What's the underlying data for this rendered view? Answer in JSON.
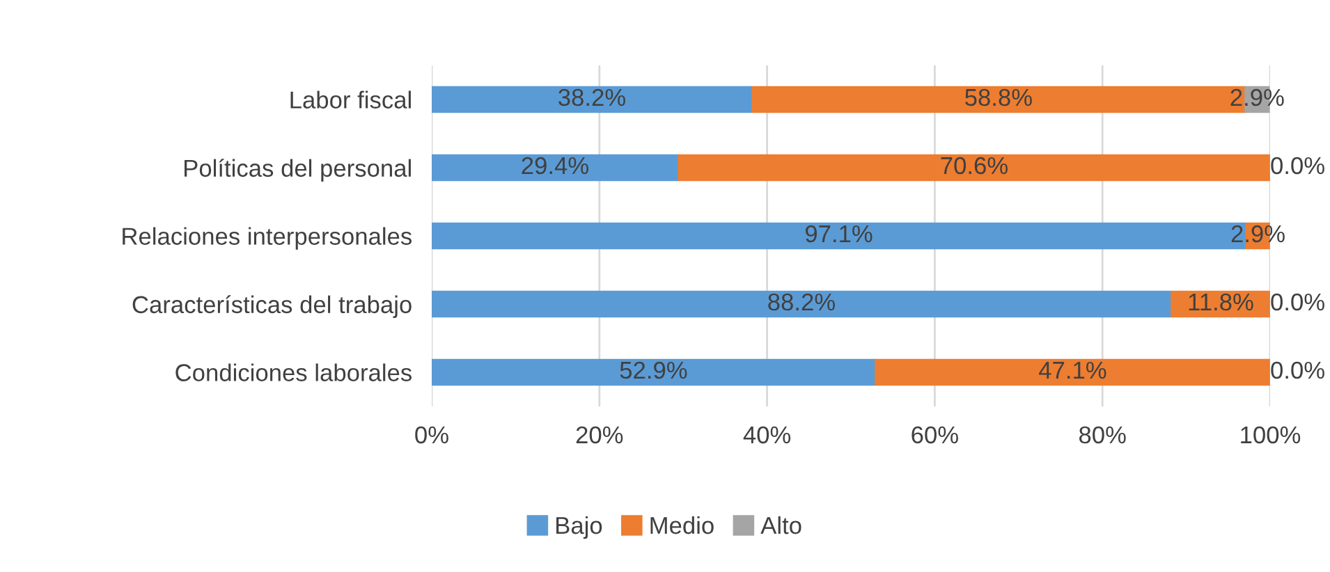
{
  "chart_data": {
    "type": "bar",
    "orientation": "horizontal",
    "stacked": true,
    "categories": [
      "Labor fiscal",
      "Políticas del personal",
      "Relaciones interpersonales",
      "Características del trabajo",
      "Condiciones laborales"
    ],
    "series": [
      {
        "name": "Bajo",
        "color": "#5b9bd5",
        "values": [
          38.2,
          29.4,
          97.1,
          88.2,
          52.9
        ],
        "value_labels": [
          "38.2%",
          "29.4%",
          "97.1%",
          "88.2%",
          "52.9%"
        ]
      },
      {
        "name": "Medio",
        "color": "#ed7d31",
        "values": [
          58.8,
          70.6,
          2.9,
          11.8,
          47.1
        ],
        "value_labels": [
          "58.8%",
          "70.6%",
          "2.9%",
          "11.8%",
          "47.1%"
        ]
      },
      {
        "name": "Alto",
        "color": "#a5a5a5",
        "values": [
          2.9,
          0.0,
          0.0,
          0.0,
          0.0
        ],
        "value_labels": [
          "2.9%",
          "0.0%",
          null,
          "0.0%",
          "0.0%"
        ]
      }
    ],
    "xlim": [
      0,
      100
    ],
    "xticks": [
      {
        "value": 0,
        "label": "0%"
      },
      {
        "value": 20,
        "label": "20%"
      },
      {
        "value": 40,
        "label": "40%"
      },
      {
        "value": 60,
        "label": "60%"
      },
      {
        "value": 80,
        "label": "80%"
      },
      {
        "value": 100,
        "label": "100%"
      }
    ],
    "grid": "x",
    "legend": "bottom"
  }
}
